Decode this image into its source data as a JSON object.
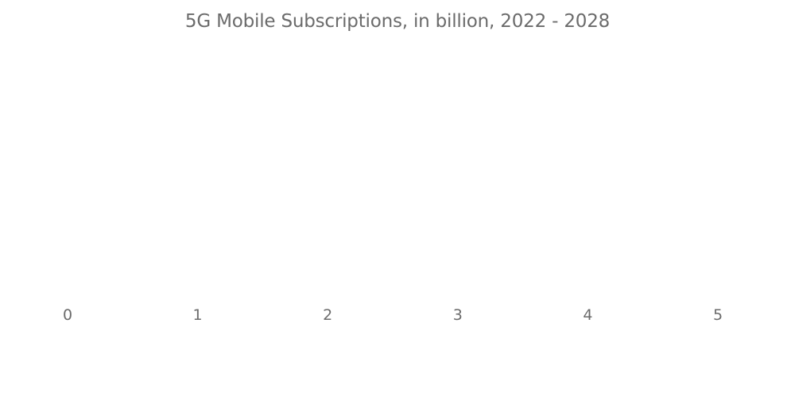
{
  "chart_data": {
    "type": "bar",
    "title": "5G Mobile Subscriptions, in billion, 2022 - 2028",
    "xlabel": "",
    "ylabel": "",
    "categories": [],
    "values": [],
    "xlim": [
      0,
      5
    ],
    "x_ticks": [
      "0",
      "1",
      "2",
      "3",
      "4",
      "5"
    ],
    "grid": false,
    "legend": "none"
  }
}
